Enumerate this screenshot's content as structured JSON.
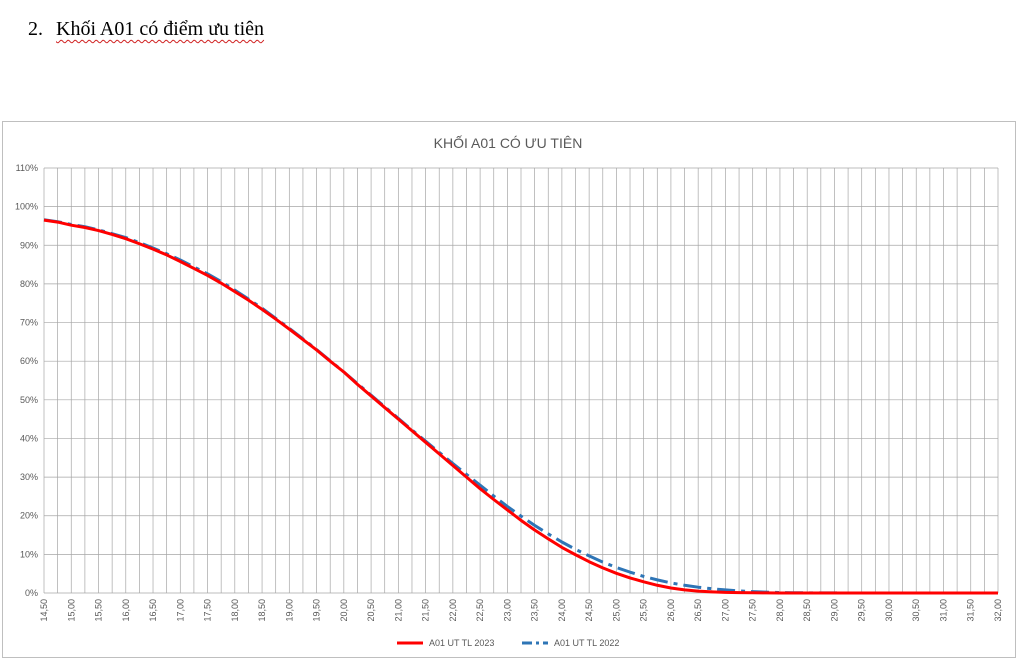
{
  "document": {
    "section_number": "2.",
    "section_title": "Khối A01 có điểm ưu tiên"
  },
  "colors": {
    "series_2023": "#ff0000",
    "series_2022": "#2e75b6",
    "grid": "#a6a6a6",
    "text": "#595959"
  },
  "chart_data": {
    "type": "line",
    "title": "KHỐI A01 CÓ ƯU TIÊN",
    "xlabel": "",
    "ylabel": "",
    "ylim": [
      0,
      110
    ],
    "y_ticks": [
      "0%",
      "10%",
      "20%",
      "30%",
      "40%",
      "50%",
      "60%",
      "70%",
      "80%",
      "90%",
      "100%",
      "110%"
    ],
    "categories": [
      "14,50",
      "15,00",
      "15,50",
      "16,00",
      "16,50",
      "17,00",
      "17,50",
      "18,00",
      "18,50",
      "19,00",
      "19,50",
      "20,00",
      "20,50",
      "21,00",
      "21,50",
      "22,00",
      "22,50",
      "23,00",
      "23,50",
      "24,00",
      "24,50",
      "25,00",
      "25,50",
      "26,00",
      "26,50",
      "27,00",
      "27,50",
      "28,00",
      "28,50",
      "29,00",
      "29,50",
      "30,00",
      "30,50",
      "31,00",
      "31,50",
      "32,00"
    ],
    "x": [
      14.5,
      14.75,
      15.0,
      15.25,
      15.5,
      15.75,
      16.0,
      16.25,
      16.5,
      16.75,
      17.0,
      17.25,
      17.5,
      17.75,
      18.0,
      18.25,
      18.5,
      18.75,
      19.0,
      19.25,
      19.5,
      19.75,
      20.0,
      20.25,
      20.5,
      20.75,
      21.0,
      21.25,
      21.5,
      21.75,
      22.0,
      22.25,
      22.5,
      22.75,
      23.0,
      23.25,
      23.5,
      23.75,
      24.0,
      24.25,
      24.5,
      24.75,
      25.0,
      25.25,
      25.5,
      25.75,
      26.0,
      26.25,
      26.5,
      26.75,
      27.0,
      27.25,
      27.5,
      27.75,
      28.0,
      28.25,
      28.5,
      28.75,
      29.0,
      29.25,
      29.5,
      29.75,
      30.0,
      30.25,
      30.5,
      30.75,
      31.0,
      31.25,
      31.5,
      31.75,
      32.0
    ],
    "grid": true,
    "legend_position": "bottom",
    "series": [
      {
        "name": "A01 UT TL 2023",
        "color": "#ff0000",
        "style": "solid",
        "values": [
          96.5,
          96.0,
          95.2,
          94.6,
          93.8,
          92.8,
          91.7,
          90.4,
          89.0,
          87.5,
          85.8,
          84.0,
          82.2,
          80.2,
          78.0,
          75.8,
          73.4,
          70.9,
          68.3,
          65.6,
          62.9,
          60.0,
          57.2,
          54.0,
          51.0,
          48.0,
          45.0,
          42.0,
          39.0,
          36.0,
          33.0,
          30.0,
          27.0,
          24.2,
          21.5,
          18.8,
          16.3,
          14.0,
          11.8,
          9.9,
          8.1,
          6.5,
          5.1,
          3.9,
          2.9,
          2.0,
          1.3,
          0.8,
          0.5,
          0.3,
          0.15,
          0.1,
          0.05,
          0.02,
          0.0,
          0.0,
          0.0,
          0.0,
          0.0,
          0.0,
          0.0,
          0.0,
          0.0,
          0.0,
          0.0,
          0.0,
          0.0,
          0.0,
          0.0,
          0.0,
          0.0
        ]
      },
      {
        "name": "A01 UT TL 2022",
        "color": "#2e75b6",
        "style": "dashdot",
        "values": [
          96.6,
          96.1,
          95.4,
          94.8,
          94.0,
          93.0,
          92.0,
          90.7,
          89.3,
          87.8,
          86.2,
          84.4,
          82.6,
          80.6,
          78.4,
          76.1,
          73.7,
          71.1,
          68.5,
          65.8,
          63.0,
          60.1,
          57.2,
          54.2,
          51.2,
          48.2,
          45.2,
          42.2,
          39.3,
          36.4,
          33.5,
          30.7,
          27.9,
          25.1,
          22.4,
          19.9,
          17.5,
          15.3,
          13.2,
          11.3,
          9.6,
          8.0,
          6.6,
          5.4,
          4.3,
          3.4,
          2.6,
          2.0,
          1.5,
          1.1,
          0.8,
          0.55,
          0.35,
          0.22,
          0.13,
          0.08,
          0.05,
          0.03,
          0.02,
          0.01,
          0.0,
          0.0,
          0.0,
          0.0,
          0.0,
          0.0,
          0.0,
          0.0,
          0.0,
          0.0,
          0.0
        ]
      }
    ]
  }
}
